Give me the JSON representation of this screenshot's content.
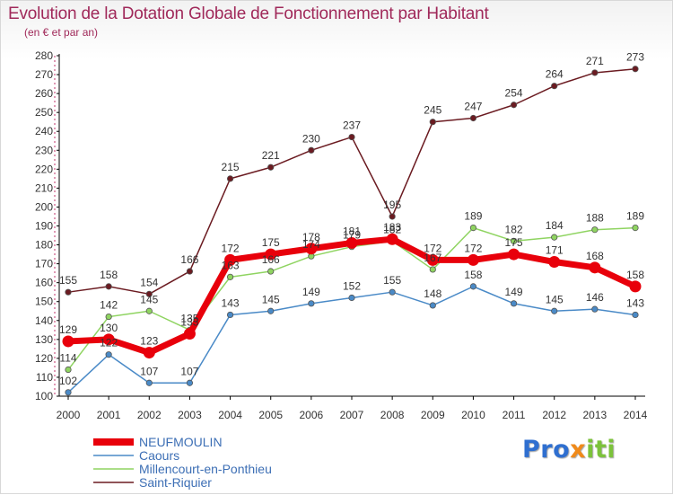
{
  "header": {
    "title": "Evolution de la Dotation Globale de Fonctionnement par Habitant",
    "subtitle": "(en € et par an)"
  },
  "logo": {
    "text": "Proxiti"
  },
  "chart_data": {
    "type": "line",
    "title": "Evolution de la Dotation Globale de Fonctionnement par Habitant",
    "subtitle": "(en € et par an)",
    "xlabel": "",
    "ylabel": "",
    "ylim": [
      100,
      280
    ],
    "ytick_step": 10,
    "grid": false,
    "legend_position": "bottom-left",
    "categories": [
      "2000",
      "2001",
      "2002",
      "2003",
      "2004",
      "2005",
      "2006",
      "2007",
      "2008",
      "2009",
      "2010",
      "2011",
      "2012",
      "2013",
      "2014"
    ],
    "series": [
      {
        "name": "NEUFMOULIN",
        "color": "#e8000b",
        "values": [
          129,
          130,
          123,
          133,
          172,
          175,
          178,
          181,
          183,
          172,
          172,
          175,
          171,
          168,
          158
        ]
      },
      {
        "name": "Caours",
        "color": "#4a8ac7",
        "values": [
          102,
          122,
          107,
          107,
          143,
          145,
          149,
          152,
          155,
          148,
          158,
          149,
          145,
          146,
          143
        ]
      },
      {
        "name": "Millencourt-en-Ponthieu",
        "color": "#8fd461",
        "values": [
          114,
          142,
          145,
          135,
          163,
          166,
          174,
          179,
          182,
          167,
          189,
          182,
          184,
          188,
          189
        ]
      },
      {
        "name": "Saint-Riquier",
        "color": "#6b1b21",
        "values": [
          155,
          158,
          154,
          166,
          215,
          221,
          230,
          237,
          195,
          245,
          247,
          254,
          264,
          271,
          273
        ]
      }
    ]
  }
}
